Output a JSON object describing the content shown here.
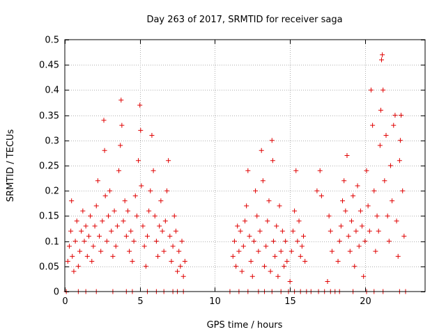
{
  "chart_data": {
    "type": "scatter",
    "title": "Day 263 of 2017, SRMTID for receiver saga",
    "xlabel": "GPS time / hours",
    "ylabel": "SRMTID / TECUs",
    "xlim": [
      0,
      24
    ],
    "ylim": [
      0,
      0.5
    ],
    "x_ticks": [
      0,
      5,
      10,
      15,
      20
    ],
    "x_tick_labels": [
      "0",
      "5",
      "10",
      "15",
      "20"
    ],
    "y_ticks": [
      0,
      0.05,
      0.1,
      0.15,
      0.2,
      0.25,
      0.3,
      0.35,
      0.4,
      0.45,
      0.5
    ],
    "y_tick_labels": [
      "0",
      "0.05",
      "0.1",
      "0.15",
      "0.2",
      "0.25",
      "0.3",
      "0.35",
      "0.4",
      "0.45",
      "0.5"
    ],
    "grid": true,
    "marker": "+",
    "colors": {
      "series": "#e00000",
      "grid": "#b0b0b0",
      "axes": "#000000"
    },
    "series": [
      {
        "name": "SRMTID",
        "points": [
          [
            0.2,
            0.06
          ],
          [
            0.3,
            0.09
          ],
          [
            0.4,
            0.12
          ],
          [
            0.45,
            0.18
          ],
          [
            0.5,
            0.07
          ],
          [
            0.6,
            0.04
          ],
          [
            0.7,
            0.1
          ],
          [
            0.8,
            0.14
          ],
          [
            0.9,
            0.05
          ],
          [
            1.0,
            0.08
          ],
          [
            1.1,
            0.12
          ],
          [
            1.2,
            0.16
          ],
          [
            1.3,
            0.1
          ],
          [
            1.4,
            0.13
          ],
          [
            1.5,
            0.07
          ],
          [
            1.6,
            0.11
          ],
          [
            1.7,
            0.15
          ],
          [
            1.8,
            0.06
          ],
          [
            1.9,
            0.09
          ],
          [
            2.0,
            0.13
          ],
          [
            2.1,
            0.17
          ],
          [
            2.2,
            0.22
          ],
          [
            2.3,
            0.11
          ],
          [
            2.4,
            0.08
          ],
          [
            2.5,
            0.14
          ],
          [
            2.6,
            0.34
          ],
          [
            2.65,
            0.28
          ],
          [
            2.7,
            0.19
          ],
          [
            2.8,
            0.1
          ],
          [
            2.9,
            0.15
          ],
          [
            3.0,
            0.2
          ],
          [
            3.1,
            0.12
          ],
          [
            3.2,
            0.07
          ],
          [
            3.3,
            0.16
          ],
          [
            3.4,
            0.09
          ],
          [
            3.5,
            0.13
          ],
          [
            3.6,
            0.24
          ],
          [
            3.7,
            0.29
          ],
          [
            3.75,
            0.38
          ],
          [
            3.8,
            0.33
          ],
          [
            3.9,
            0.14
          ],
          [
            4.0,
            0.18
          ],
          [
            4.1,
            0.11
          ],
          [
            4.2,
            0.16
          ],
          [
            4.3,
            0.08
          ],
          [
            4.4,
            0.12
          ],
          [
            4.5,
            0.06
          ],
          [
            4.6,
            0.1
          ],
          [
            4.7,
            0.19
          ],
          [
            4.8,
            0.15
          ],
          [
            4.9,
            0.26
          ],
          [
            5.0,
            0.37
          ],
          [
            5.05,
            0.32
          ],
          [
            5.1,
            0.21
          ],
          [
            5.2,
            0.13
          ],
          [
            5.3,
            0.09
          ],
          [
            5.4,
            0.05
          ],
          [
            5.5,
            0.11
          ],
          [
            5.6,
            0.16
          ],
          [
            5.7,
            0.2
          ],
          [
            5.8,
            0.31
          ],
          [
            5.9,
            0.24
          ],
          [
            6.0,
            0.15
          ],
          [
            6.1,
            0.1
          ],
          [
            6.2,
            0.07
          ],
          [
            6.3,
            0.13
          ],
          [
            6.4,
            0.18
          ],
          [
            6.5,
            0.12
          ],
          [
            6.6,
            0.08
          ],
          [
            6.7,
            0.14
          ],
          [
            6.8,
            0.2
          ],
          [
            6.9,
            0.26
          ],
          [
            7.0,
            0.11
          ],
          [
            7.1,
            0.06
          ],
          [
            7.2,
            0.09
          ],
          [
            7.3,
            0.15
          ],
          [
            7.4,
            0.12
          ],
          [
            7.5,
            0.04
          ],
          [
            7.6,
            0.08
          ],
          [
            7.7,
            0.05
          ],
          [
            7.8,
            0.1
          ],
          [
            7.9,
            0.03
          ],
          [
            8.0,
            0.06
          ],
          [
            11.2,
            0.07
          ],
          [
            11.3,
            0.1
          ],
          [
            11.4,
            0.05
          ],
          [
            11.5,
            0.13
          ],
          [
            11.6,
            0.08
          ],
          [
            11.7,
            0.12
          ],
          [
            11.8,
            0.04
          ],
          [
            11.9,
            0.09
          ],
          [
            12.0,
            0.14
          ],
          [
            12.1,
            0.17
          ],
          [
            12.2,
            0.24
          ],
          [
            12.3,
            0.11
          ],
          [
            12.4,
            0.06
          ],
          [
            12.5,
            0.03
          ],
          [
            12.6,
            0.1
          ],
          [
            12.7,
            0.2
          ],
          [
            12.8,
            0.15
          ],
          [
            12.9,
            0.08
          ],
          [
            13.0,
            0.12
          ],
          [
            13.1,
            0.28
          ],
          [
            13.2,
            0.22
          ],
          [
            13.3,
            0.05
          ],
          [
            13.4,
            0.09
          ],
          [
            13.5,
            0.14
          ],
          [
            13.6,
            0.18
          ],
          [
            13.7,
            0.04
          ],
          [
            13.8,
            0.3
          ],
          [
            13.85,
            0.26
          ],
          [
            13.9,
            0.1
          ],
          [
            14.0,
            0.07
          ],
          [
            14.1,
            0.13
          ],
          [
            14.2,
            0.03
          ],
          [
            14.3,
            0.17
          ],
          [
            14.4,
            0.08
          ],
          [
            14.5,
            0.12
          ],
          [
            14.6,
            0.05
          ],
          [
            14.7,
            0.1
          ],
          [
            14.8,
            0.06
          ],
          [
            15.0,
            0.02
          ],
          [
            15.1,
            0.08
          ],
          [
            15.2,
            0.12
          ],
          [
            15.3,
            0.16
          ],
          [
            15.4,
            0.24
          ],
          [
            15.5,
            0.1
          ],
          [
            15.6,
            0.14
          ],
          [
            15.7,
            0.07
          ],
          [
            15.8,
            0.09
          ],
          [
            15.9,
            0.11
          ],
          [
            16.0,
            0.06
          ],
          [
            16.8,
            0.2
          ],
          [
            17.0,
            0.24
          ],
          [
            17.1,
            0.19
          ],
          [
            17.5,
            0.02
          ],
          [
            17.6,
            0.15
          ],
          [
            17.7,
            0.12
          ],
          [
            17.8,
            0.08
          ],
          [
            18.2,
            0.06
          ],
          [
            18.3,
            0.1
          ],
          [
            18.4,
            0.13
          ],
          [
            18.5,
            0.18
          ],
          [
            18.6,
            0.22
          ],
          [
            18.7,
            0.16
          ],
          [
            18.8,
            0.27
          ],
          [
            18.9,
            0.11
          ],
          [
            19.0,
            0.08
          ],
          [
            19.1,
            0.14
          ],
          [
            19.2,
            0.19
          ],
          [
            19.3,
            0.05
          ],
          [
            19.4,
            0.12
          ],
          [
            19.5,
            0.21
          ],
          [
            19.6,
            0.09
          ],
          [
            19.7,
            0.16
          ],
          [
            19.8,
            0.13
          ],
          [
            19.9,
            0.03
          ],
          [
            20.0,
            0.1
          ],
          [
            20.1,
            0.24
          ],
          [
            20.2,
            0.17
          ],
          [
            20.3,
            0.12
          ],
          [
            20.4,
            0.4
          ],
          [
            20.5,
            0.33
          ],
          [
            20.6,
            0.2
          ],
          [
            20.7,
            0.08
          ],
          [
            20.8,
            0.15
          ],
          [
            20.9,
            0.12
          ],
          [
            21.0,
            0.29
          ],
          [
            21.05,
            0.36
          ],
          [
            21.1,
            0.46
          ],
          [
            21.15,
            0.47
          ],
          [
            21.2,
            0.4
          ],
          [
            21.3,
            0.22
          ],
          [
            21.4,
            0.31
          ],
          [
            21.5,
            0.15
          ],
          [
            21.6,
            0.1
          ],
          [
            21.7,
            0.25
          ],
          [
            21.8,
            0.18
          ],
          [
            21.9,
            0.33
          ],
          [
            22.0,
            0.35
          ],
          [
            22.1,
            0.14
          ],
          [
            22.2,
            0.07
          ],
          [
            22.3,
            0.26
          ],
          [
            22.35,
            0.3
          ],
          [
            22.4,
            0.35
          ],
          [
            22.5,
            0.2
          ],
          [
            22.6,
            0.11
          ],
          [
            0.1,
            0.0
          ],
          [
            0.9,
            0.0
          ],
          [
            1.4,
            0.0
          ],
          [
            2.1,
            0.0
          ],
          [
            3.2,
            0.0
          ],
          [
            4.1,
            0.0
          ],
          [
            4.5,
            0.0
          ],
          [
            5.5,
            0.0
          ],
          [
            6.1,
            0.0
          ],
          [
            6.6,
            0.0
          ],
          [
            7.2,
            0.0
          ],
          [
            7.5,
            0.0
          ],
          [
            7.9,
            0.0
          ],
          [
            11.0,
            0.0
          ],
          [
            11.6,
            0.0
          ],
          [
            12.2,
            0.0
          ],
          [
            12.9,
            0.0
          ],
          [
            13.3,
            0.0
          ],
          [
            13.8,
            0.0
          ],
          [
            14.4,
            0.0
          ],
          [
            14.9,
            0.0
          ],
          [
            15.3,
            0.0
          ],
          [
            15.7,
            0.0
          ],
          [
            16.1,
            0.0
          ],
          [
            16.4,
            0.0
          ],
          [
            16.9,
            0.0
          ],
          [
            17.3,
            0.0
          ],
          [
            17.7,
            0.0
          ],
          [
            18.0,
            0.0
          ],
          [
            18.3,
            0.0
          ],
          [
            19.2,
            0.0
          ],
          [
            20.1,
            0.0
          ],
          [
            20.6,
            0.0
          ],
          [
            21.2,
            0.0
          ],
          [
            22.3,
            0.0
          ],
          [
            22.7,
            0.0
          ]
        ]
      }
    ]
  }
}
